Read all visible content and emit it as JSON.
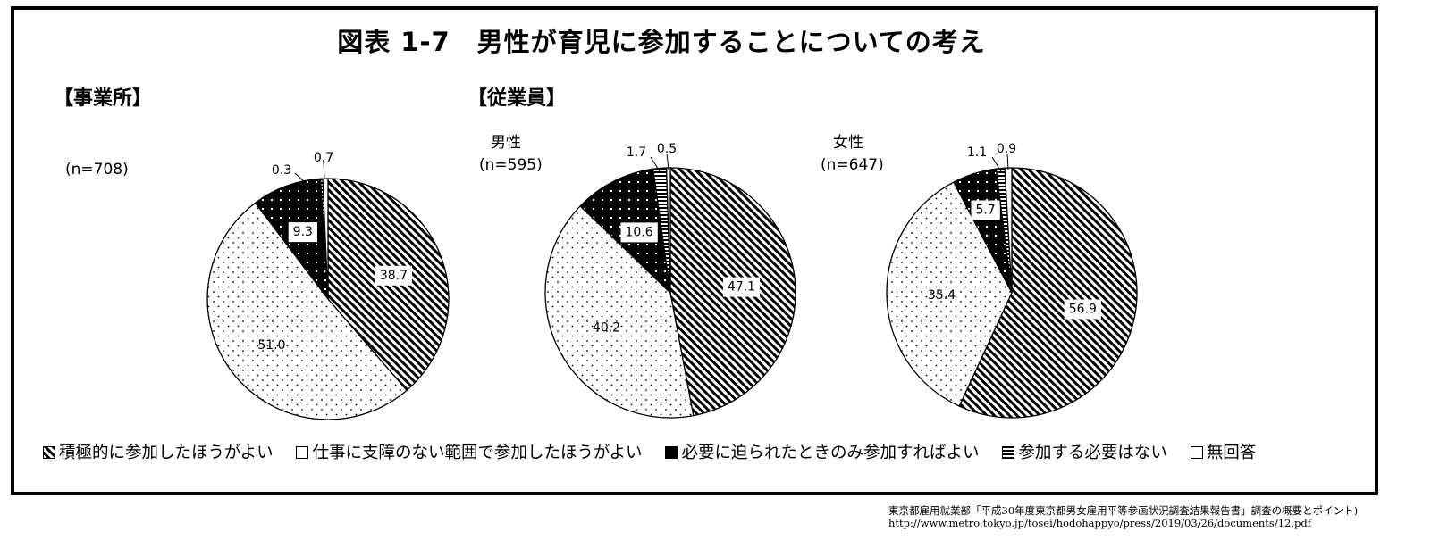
{
  "title": "図表 1-7　男性が育児に参加することについての考え",
  "sections": {
    "office": "【事業所】",
    "employees": "【従業員】"
  },
  "colors": {
    "ink": "#000000",
    "paper": "#ffffff"
  },
  "source": {
    "line1": "東京都雇用就業部「平成30年度東京都男女雇用平等参画状況調査結果報告書」調査の概要とポイント)",
    "line2": "http://www.metro.tokyo.jp/tosei/hodohappyo/press/2019/03/26/documents/12.pdf"
  },
  "chart_data": [
    {
      "type": "pie",
      "group": "【事業所】",
      "subtitle": "",
      "n": "(n=708)",
      "legend": [
        "積極的に参加したほうがよい",
        "仕事に支障のない範囲で参加したほうがよい",
        "必要に迫られたときのみ参加すればよい",
        "参加する必要はない",
        "無回答"
      ],
      "values": [
        38.7,
        51.0,
        9.3,
        0.3,
        0.7
      ],
      "labels": [
        "38.7",
        "51.0",
        "9.3",
        "0.3",
        "0.7"
      ],
      "start_angle_deg": 0,
      "direction": "clockwise",
      "legend_placement": "bottom"
    },
    {
      "type": "pie",
      "group": "【従業員】",
      "subtitle": "男性",
      "n": "(n=595)",
      "legend": [
        "積極的に参加したほうがよい",
        "仕事に支障のない範囲で参加したほうがよい",
        "必要に迫られたときのみ参加すればよい",
        "参加する必要はない",
        "無回答"
      ],
      "values": [
        47.1,
        40.2,
        10.6,
        1.7,
        0.5
      ],
      "labels": [
        "47.1",
        "40.2",
        "10.6",
        "1.7",
        "0.5"
      ],
      "start_angle_deg": 0,
      "direction": "clockwise",
      "legend_placement": "bottom"
    },
    {
      "type": "pie",
      "group": "【従業員】",
      "subtitle": "女性",
      "n": "(n=647)",
      "legend": [
        "積極的に参加したほうがよい",
        "仕事に支障のない範囲で参加したほうがよい",
        "必要に迫られたときのみ参加すればよい",
        "参加する必要はない",
        "無回答"
      ],
      "values": [
        56.9,
        35.4,
        5.7,
        1.1,
        0.9
      ],
      "labels": [
        "56.9",
        "35.4",
        "5.7",
        "1.1",
        "0.9"
      ],
      "start_angle_deg": 0,
      "direction": "clockwise",
      "legend_placement": "bottom"
    }
  ]
}
